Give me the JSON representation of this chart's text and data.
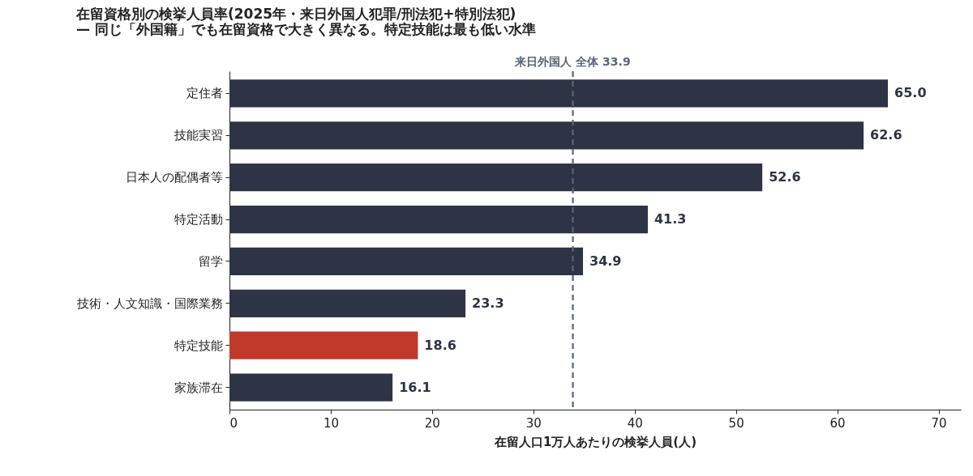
{
  "chart_data": {
    "type": "bar",
    "orientation": "horizontal",
    "title": "在留資格別の検挙人員率(2025年・来日外国人犯罪/刑法犯+特別法犯)",
    "subtitle": "— 同じ「外国籍」でも在留資格で大きく異なる。特定技能は最も低い水準",
    "xlabel": "在留人口1万人あたりの検挙人員(人)",
    "categories": [
      "定住者",
      "技能実習",
      "日本人の配偶者等",
      "特定活動",
      "留学",
      "技術・人文知識・国際業務",
      "特定技能",
      "家族滞在"
    ],
    "values": [
      65.0,
      62.6,
      52.6,
      41.3,
      34.9,
      23.3,
      18.6,
      16.1
    ],
    "value_labels": [
      "65.0",
      "62.6",
      "52.6",
      "41.3",
      "34.9",
      "23.3",
      "18.6",
      "16.1"
    ],
    "colors": [
      "#2e3445",
      "#2e3445",
      "#2e3445",
      "#2e3445",
      "#2e3445",
      "#2e3445",
      "#c0392b",
      "#2e3445"
    ],
    "xlim": [
      0,
      72.2
    ],
    "xticks": [
      0,
      10,
      20,
      30,
      40,
      50,
      60,
      70
    ],
    "ref_lines": [
      {
        "axis": "x",
        "value": 33.9,
        "label": "来日外国人 全体 33.9",
        "color": "#5a6478",
        "line_style": "dashed"
      }
    ],
    "grid": false
  }
}
